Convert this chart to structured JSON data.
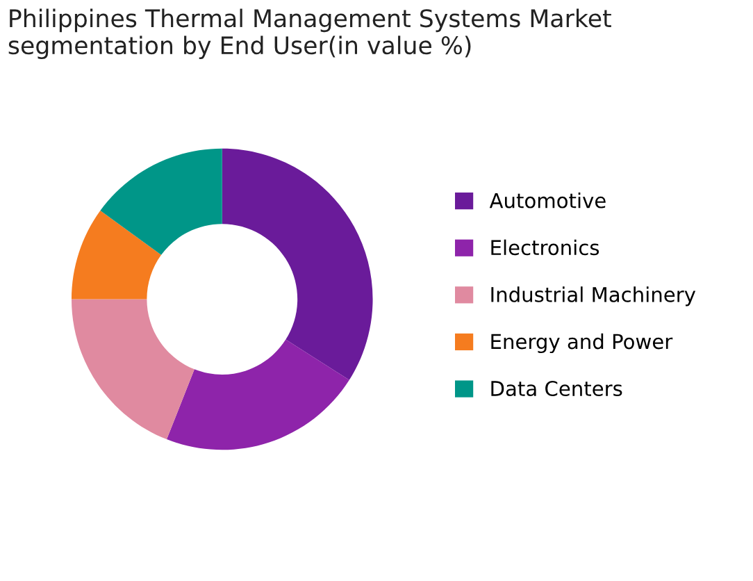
{
  "chart_data": {
    "type": "donut",
    "title": "Philippines Thermal Management Systems Market\nsegmentation by End User(in value %)",
    "categories": [
      "Automotive",
      "Electronics",
      "Industrial Machinery",
      "Energy and Power",
      "Data Centers"
    ],
    "values": [
      34,
      22,
      19,
      10,
      15
    ],
    "colors": [
      "#6a1b9a",
      "#8e24aa",
      "#e08aa0",
      "#f57c1f",
      "#009688"
    ],
    "legend": "right"
  }
}
